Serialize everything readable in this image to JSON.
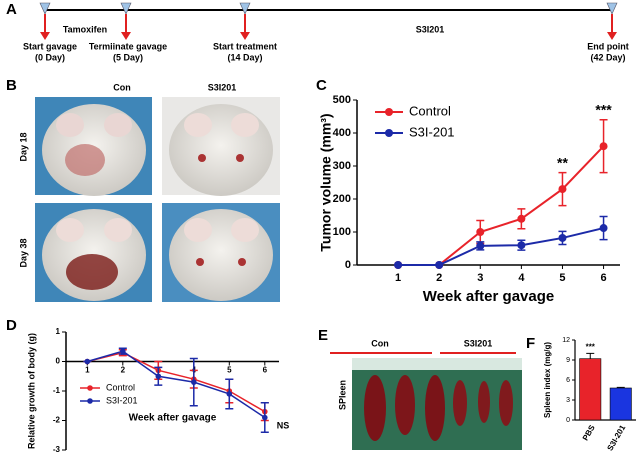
{
  "panels": [
    "A",
    "B",
    "C",
    "D",
    "E",
    "F"
  ],
  "timeline": {
    "events": [
      {
        "label": "Start gavage",
        "sub": "(0 Day)"
      },
      {
        "label": "Termiinate gavage",
        "sub": "(5 Day)"
      },
      {
        "label": "Start treatment",
        "sub": "(14 Day)"
      },
      {
        "label": "End point",
        "sub": "(42 Day)"
      }
    ],
    "phases": [
      "Tamoxifen",
      "S3I201"
    ]
  },
  "photos": {
    "columns": [
      "Con",
      "S3I201"
    ],
    "rows": [
      "Day  18",
      "Day  38"
    ]
  },
  "spleen": {
    "groups": [
      "Con",
      "S3I201"
    ],
    "side_label": "SPleen"
  },
  "chart_data": [
    {
      "type": "line",
      "xlabel": "Week after gavage",
      "ylabel": "Tumor volume (mm³)",
      "x": [
        1,
        2,
        3,
        4,
        5,
        6
      ],
      "xlim": [
        0,
        6.4
      ],
      "xticks": [
        1,
        2,
        3,
        4,
        5,
        6
      ],
      "ylim": [
        0,
        500
      ],
      "yticks": [
        0,
        100,
        200,
        300,
        400,
        500
      ],
      "legend": "upper left",
      "series": [
        {
          "name": "Control",
          "color": "#e8232a",
          "values": [
            0,
            0,
            100,
            140,
            230,
            360
          ],
          "errors": [
            0,
            0,
            35,
            30,
            50,
            80
          ]
        },
        {
          "name": "S3I-201",
          "color": "#1c2aa8",
          "values": [
            0,
            0,
            58,
            60,
            82,
            112
          ],
          "errors": [
            0,
            0,
            12,
            15,
            20,
            35
          ]
        }
      ],
      "annotations": [
        {
          "text": "**",
          "x": 5
        },
        {
          "text": "***",
          "x": 6
        }
      ]
    },
    {
      "type": "line",
      "xlabel": "Week after gavage",
      "ylabel": "Relative growth of body (g)",
      "x": [
        1,
        2,
        3,
        4,
        5,
        6
      ],
      "xlim": [
        0.4,
        6.4
      ],
      "xticks": [
        1,
        2,
        3,
        4,
        5,
        6
      ],
      "ylim": [
        -3,
        1
      ],
      "yticks": [
        1,
        0,
        -1,
        -2,
        -3
      ],
      "legend": "lower left",
      "series": [
        {
          "name": "Control",
          "color": "#e8232a",
          "values": [
            0,
            0.3,
            -0.3,
            -0.6,
            -1.0,
            -1.7
          ],
          "errors": [
            0,
            0.1,
            0.3,
            0.3,
            0.4,
            0.3
          ]
        },
        {
          "name": "S3I-201",
          "color": "#1c2aa8",
          "values": [
            0,
            0.35,
            -0.5,
            -0.7,
            -1.1,
            -1.9
          ],
          "errors": [
            0,
            0.1,
            0.3,
            0.8,
            0.5,
            0.5
          ]
        }
      ],
      "annotations": [
        {
          "text": "NS",
          "x": 6
        }
      ]
    },
    {
      "type": "bar",
      "ylabel": "Spleen index (mg/g)",
      "categories": [
        "PBS",
        "S3I-201"
      ],
      "values": [
        9.2,
        4.8
      ],
      "errors": [
        0.8,
        0.1
      ],
      "colors": [
        "#e8232a",
        "#1a35e0"
      ],
      "ylim": [
        0,
        12
      ],
      "yticks": [
        0,
        3,
        6,
        9,
        12
      ],
      "annotations": [
        {
          "text": "***",
          "x": 0
        }
      ]
    }
  ]
}
